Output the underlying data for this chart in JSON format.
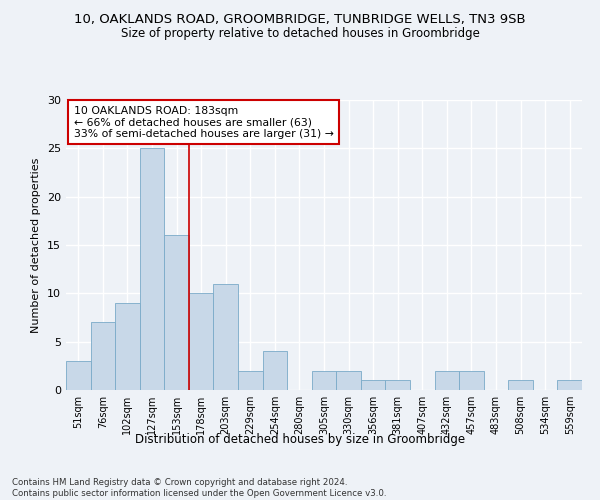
{
  "title_line1": "10, OAKLANDS ROAD, GROOMBRIDGE, TUNBRIDGE WELLS, TN3 9SB",
  "title_line2": "Size of property relative to detached houses in Groombridge",
  "xlabel": "Distribution of detached houses by size in Groombridge",
  "ylabel": "Number of detached properties",
  "categories": [
    "51sqm",
    "76sqm",
    "102sqm",
    "127sqm",
    "153sqm",
    "178sqm",
    "203sqm",
    "229sqm",
    "254sqm",
    "280sqm",
    "305sqm",
    "330sqm",
    "356sqm",
    "381sqm",
    "407sqm",
    "432sqm",
    "457sqm",
    "483sqm",
    "508sqm",
    "534sqm",
    "559sqm"
  ],
  "values": [
    3,
    7,
    9,
    25,
    16,
    10,
    11,
    2,
    4,
    0,
    2,
    2,
    1,
    1,
    0,
    2,
    2,
    0,
    1,
    0,
    1
  ],
  "bar_color": "#c8d8e8",
  "bar_edge_color": "#7aaac8",
  "ylim": [
    0,
    30
  ],
  "yticks": [
    0,
    5,
    10,
    15,
    20,
    25,
    30
  ],
  "property_line_x": 4.5,
  "annotation_text": "10 OAKLANDS ROAD: 183sqm\n← 66% of detached houses are smaller (63)\n33% of semi-detached houses are larger (31) →",
  "annotation_box_color": "#ffffff",
  "annotation_box_edge": "#cc0000",
  "property_line_color": "#cc0000",
  "background_color": "#eef2f7",
  "grid_color": "#ffffff",
  "footnote": "Contains HM Land Registry data © Crown copyright and database right 2024.\nContains public sector information licensed under the Open Government Licence v3.0."
}
